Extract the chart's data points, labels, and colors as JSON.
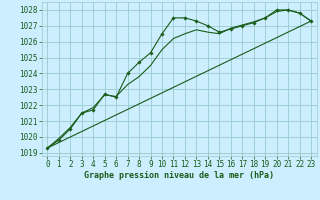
{
  "title": "Graphe pression niveau de la mer (hPa)",
  "bg_color": "#cceeff",
  "grid_color": "#99cccc",
  "line_color": "#1a5c1a",
  "xlim": [
    -0.5,
    23.5
  ],
  "ylim": [
    1018.8,
    1028.5
  ],
  "yticks": [
    1019,
    1020,
    1021,
    1022,
    1023,
    1024,
    1025,
    1026,
    1027,
    1028
  ],
  "xticks": [
    0,
    1,
    2,
    3,
    4,
    5,
    6,
    7,
    8,
    9,
    10,
    11,
    12,
    13,
    14,
    15,
    16,
    17,
    18,
    19,
    20,
    21,
    22,
    23
  ],
  "y_main": [
    1019.3,
    1019.8,
    1020.5,
    1021.5,
    1021.7,
    1022.7,
    1022.5,
    1024.0,
    1024.7,
    1025.3,
    1026.5,
    1027.5,
    1027.5,
    1027.3,
    1027.0,
    1026.6,
    1026.8,
    1027.0,
    1027.2,
    1027.5,
    1028.0,
    1028.0,
    1027.8,
    1027.3
  ],
  "y_smooth": [
    1019.3,
    1019.9,
    1020.6,
    1021.5,
    1021.85,
    1022.65,
    1022.55,
    1023.3,
    1023.8,
    1024.5,
    1025.5,
    1026.2,
    1026.5,
    1026.75,
    1026.6,
    1026.5,
    1026.85,
    1027.05,
    1027.25,
    1027.5,
    1027.9,
    1028.0,
    1027.8,
    1027.3
  ],
  "trend_x": [
    0,
    23
  ],
  "trend_y": [
    1019.3,
    1027.3
  ],
  "tick_fontsize": 5.5,
  "label_fontsize": 6.0
}
